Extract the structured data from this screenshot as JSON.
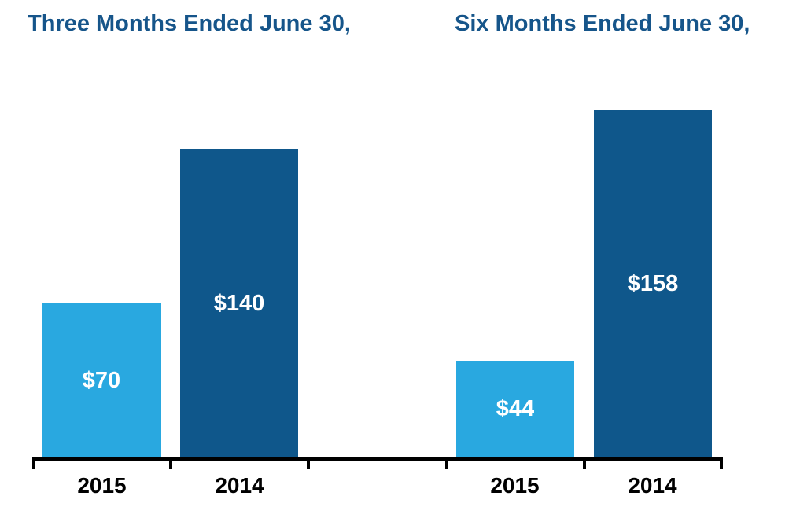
{
  "colors": {
    "light_blue": "#29A8E0",
    "dark_blue": "#0F578B",
    "title_blue": "#16558A",
    "data_label_text": "#FFFFFF",
    "axis_label_text": "#000000",
    "axis_line": "#000000"
  },
  "chart_data": [
    {
      "type": "bar",
      "title": "Three Months Ended June 30,",
      "categories": [
        "2015",
        "2014"
      ],
      "values": [
        70,
        140
      ],
      "data_labels": [
        "$70",
        "$140"
      ],
      "bar_colors": [
        "#29A8E0",
        "#0F578B"
      ],
      "ylim": [
        0,
        158
      ],
      "grid": false,
      "legend": "none",
      "y_axis_visible": false,
      "x_axis_line": true,
      "data_label_position": "center-inside"
    },
    {
      "type": "bar",
      "title": "Six Months Ended June 30,",
      "categories": [
        "2015",
        "2014"
      ],
      "values": [
        44,
        158
      ],
      "data_labels": [
        "$44",
        "$158"
      ],
      "bar_colors": [
        "#29A8E0",
        "#0F578B"
      ],
      "ylim": [
        0,
        158
      ],
      "grid": false,
      "legend": "none",
      "y_axis_visible": false,
      "x_axis_line": true,
      "data_label_position": "center-inside"
    }
  ]
}
